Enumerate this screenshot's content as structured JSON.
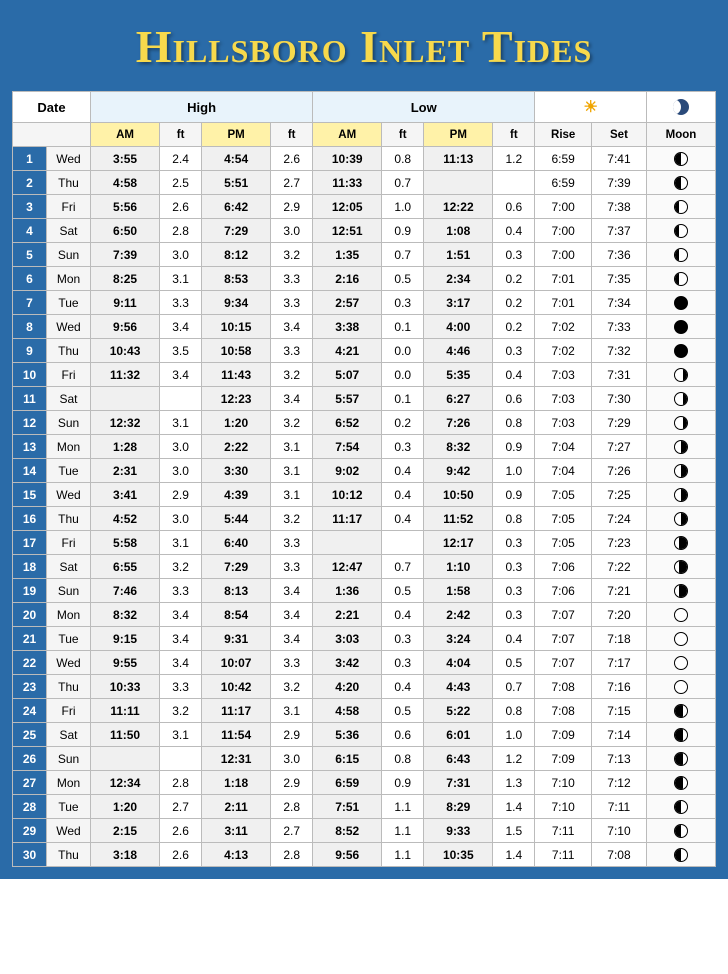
{
  "title": "Hillsboro Inlet Tides",
  "colors": {
    "page_bg": "#2a6ba8",
    "title_color": "#f7d94c",
    "highlow_bg": "#e8f3fb",
    "ampm_bg": "#fff2a8",
    "daynum_bg": "#2a6ba8",
    "border": "#bbbbbb"
  },
  "headers": {
    "date": "Date",
    "high": "High",
    "low": "Low",
    "am": "AM",
    "pm": "PM",
    "ft": "ft",
    "rise": "Rise",
    "set": "Set",
    "moon": "Moon"
  },
  "rows": [
    {
      "n": "1",
      "dow": "Wed",
      "hAM": "3:55",
      "hAMft": "2.4",
      "hPM": "4:54",
      "hPMft": "2.6",
      "lAM": "10:39",
      "lAMft": "0.8",
      "lPM": "11:13",
      "lPMft": "1.2",
      "rise": "6:59",
      "set": "7:41",
      "moon": "fq"
    },
    {
      "n": "2",
      "dow": "Thu",
      "hAM": "4:58",
      "hAMft": "2.5",
      "hPM": "5:51",
      "hPMft": "2.7",
      "lAM": "11:33",
      "lAMft": "0.7",
      "lPM": "",
      "lPMft": "",
      "rise": "6:59",
      "set": "7:39",
      "moon": "fq"
    },
    {
      "n": "3",
      "dow": "Fri",
      "hAM": "5:56",
      "hAMft": "2.6",
      "hPM": "6:42",
      "hPMft": "2.9",
      "lAM": "12:05",
      "lAMft": "1.0",
      "lPM": "12:22",
      "lPMft": "0.6",
      "rise": "7:00",
      "set": "7:38",
      "moon": "wxg"
    },
    {
      "n": "4",
      "dow": "Sat",
      "hAM": "6:50",
      "hAMft": "2.8",
      "hPM": "7:29",
      "hPMft": "3.0",
      "lAM": "12:51",
      "lAMft": "0.9",
      "lPM": "1:08",
      "lPMft": "0.4",
      "rise": "7:00",
      "set": "7:37",
      "moon": "wxg"
    },
    {
      "n": "5",
      "dow": "Sun",
      "hAM": "7:39",
      "hAMft": "3.0",
      "hPM": "8:12",
      "hPMft": "3.2",
      "lAM": "1:35",
      "lAMft": "0.7",
      "lPM": "1:51",
      "lPMft": "0.3",
      "rise": "7:00",
      "set": "7:36",
      "moon": "wxg"
    },
    {
      "n": "6",
      "dow": "Mon",
      "hAM": "8:25",
      "hAMft": "3.1",
      "hPM": "8:53",
      "hPMft": "3.3",
      "lAM": "2:16",
      "lAMft": "0.5",
      "lPM": "2:34",
      "lPMft": "0.2",
      "rise": "7:01",
      "set": "7:35",
      "moon": "wxg"
    },
    {
      "n": "7",
      "dow": "Tue",
      "hAM": "9:11",
      "hAMft": "3.3",
      "hPM": "9:34",
      "hPMft": "3.3",
      "lAM": "2:57",
      "lAMft": "0.3",
      "lPM": "3:17",
      "lPMft": "0.2",
      "rise": "7:01",
      "set": "7:34",
      "moon": "new"
    },
    {
      "n": "8",
      "dow": "Wed",
      "hAM": "9:56",
      "hAMft": "3.4",
      "hPM": "10:15",
      "hPMft": "3.4",
      "lAM": "3:38",
      "lAMft": "0.1",
      "lPM": "4:00",
      "lPMft": "0.2",
      "rise": "7:02",
      "set": "7:33",
      "moon": "new"
    },
    {
      "n": "9",
      "dow": "Thu",
      "hAM": "10:43",
      "hAMft": "3.5",
      "hPM": "10:58",
      "hPMft": "3.3",
      "lAM": "4:21",
      "lAMft": "0.0",
      "lPM": "4:46",
      "lPMft": "0.3",
      "rise": "7:02",
      "set": "7:32",
      "moon": "new"
    },
    {
      "n": "10",
      "dow": "Fri",
      "hAM": "11:32",
      "hAMft": "3.4",
      "hPM": "11:43",
      "hPMft": "3.2",
      "lAM": "5:07",
      "lAMft": "0.0",
      "lPM": "5:35",
      "lPMft": "0.4",
      "rise": "7:03",
      "set": "7:31",
      "moon": "wng"
    },
    {
      "n": "11",
      "dow": "Sat",
      "hAM": "",
      "hAMft": "",
      "hPM": "12:23",
      "hPMft": "3.4",
      "lAM": "5:57",
      "lAMft": "0.1",
      "lPM": "6:27",
      "lPMft": "0.6",
      "rise": "7:03",
      "set": "7:30",
      "moon": "wng"
    },
    {
      "n": "12",
      "dow": "Sun",
      "hAM": "12:32",
      "hAMft": "3.1",
      "hPM": "1:20",
      "hPMft": "3.2",
      "lAM": "6:52",
      "lAMft": "0.2",
      "lPM": "7:26",
      "lPMft": "0.8",
      "rise": "7:03",
      "set": "7:29",
      "moon": "wng"
    },
    {
      "n": "13",
      "dow": "Mon",
      "hAM": "1:28",
      "hAMft": "3.0",
      "hPM": "2:22",
      "hPMft": "3.1",
      "lAM": "7:54",
      "lAMft": "0.3",
      "lPM": "8:32",
      "lPMft": "0.9",
      "rise": "7:04",
      "set": "7:27",
      "moon": "lq"
    },
    {
      "n": "14",
      "dow": "Tue",
      "hAM": "2:31",
      "hAMft": "3.0",
      "hPM": "3:30",
      "hPMft": "3.1",
      "lAM": "9:02",
      "lAMft": "0.4",
      "lPM": "9:42",
      "lPMft": "1.0",
      "rise": "7:04",
      "set": "7:26",
      "moon": "lq"
    },
    {
      "n": "15",
      "dow": "Wed",
      "hAM": "3:41",
      "hAMft": "2.9",
      "hPM": "4:39",
      "hPMft": "3.1",
      "lAM": "10:12",
      "lAMft": "0.4",
      "lPM": "10:50",
      "lPMft": "0.9",
      "rise": "7:05",
      "set": "7:25",
      "moon": "lq"
    },
    {
      "n": "16",
      "dow": "Thu",
      "hAM": "4:52",
      "hAMft": "3.0",
      "hPM": "5:44",
      "hPMft": "3.2",
      "lAM": "11:17",
      "lAMft": "0.4",
      "lPM": "11:52",
      "lPMft": "0.8",
      "rise": "7:05",
      "set": "7:24",
      "moon": "lq"
    },
    {
      "n": "17",
      "dow": "Fri",
      "hAM": "5:58",
      "hAMft": "3.1",
      "hPM": "6:40",
      "hPMft": "3.3",
      "lAM": "",
      "lAMft": "",
      "lPM": "12:17",
      "lPMft": "0.3",
      "rise": "7:05",
      "set": "7:23",
      "moon": "wnc"
    },
    {
      "n": "18",
      "dow": "Sat",
      "hAM": "6:55",
      "hAMft": "3.2",
      "hPM": "7:29",
      "hPMft": "3.3",
      "lAM": "12:47",
      "lAMft": "0.7",
      "lPM": "1:10",
      "lPMft": "0.3",
      "rise": "7:06",
      "set": "7:22",
      "moon": "wnc"
    },
    {
      "n": "19",
      "dow": "Sun",
      "hAM": "7:46",
      "hAMft": "3.3",
      "hPM": "8:13",
      "hPMft": "3.4",
      "lAM": "1:36",
      "lAMft": "0.5",
      "lPM": "1:58",
      "lPMft": "0.3",
      "rise": "7:06",
      "set": "7:21",
      "moon": "wnc"
    },
    {
      "n": "20",
      "dow": "Mon",
      "hAM": "8:32",
      "hAMft": "3.4",
      "hPM": "8:54",
      "hPMft": "3.4",
      "lAM": "2:21",
      "lAMft": "0.4",
      "lPM": "2:42",
      "lPMft": "0.3",
      "rise": "7:07",
      "set": "7:20",
      "moon": "full"
    },
    {
      "n": "21",
      "dow": "Tue",
      "hAM": "9:15",
      "hAMft": "3.4",
      "hPM": "9:31",
      "hPMft": "3.4",
      "lAM": "3:03",
      "lAMft": "0.3",
      "lPM": "3:24",
      "lPMft": "0.4",
      "rise": "7:07",
      "set": "7:18",
      "moon": "full"
    },
    {
      "n": "22",
      "dow": "Wed",
      "hAM": "9:55",
      "hAMft": "3.4",
      "hPM": "10:07",
      "hPMft": "3.3",
      "lAM": "3:42",
      "lAMft": "0.3",
      "lPM": "4:04",
      "lPMft": "0.5",
      "rise": "7:07",
      "set": "7:17",
      "moon": "full"
    },
    {
      "n": "23",
      "dow": "Thu",
      "hAM": "10:33",
      "hAMft": "3.3",
      "hPM": "10:42",
      "hPMft": "3.2",
      "lAM": "4:20",
      "lAMft": "0.4",
      "lPM": "4:43",
      "lPMft": "0.7",
      "rise": "7:08",
      "set": "7:16",
      "moon": "full"
    },
    {
      "n": "24",
      "dow": "Fri",
      "hAM": "11:11",
      "hAMft": "3.2",
      "hPM": "11:17",
      "hPMft": "3.1",
      "lAM": "4:58",
      "lAMft": "0.5",
      "lPM": "5:22",
      "lPMft": "0.8",
      "rise": "7:08",
      "set": "7:15",
      "moon": "wxc"
    },
    {
      "n": "25",
      "dow": "Sat",
      "hAM": "11:50",
      "hAMft": "3.1",
      "hPM": "11:54",
      "hPMft": "2.9",
      "lAM": "5:36",
      "lAMft": "0.6",
      "lPM": "6:01",
      "lPMft": "1.0",
      "rise": "7:09",
      "set": "7:14",
      "moon": "wxc"
    },
    {
      "n": "26",
      "dow": "Sun",
      "hAM": "",
      "hAMft": "",
      "hPM": "12:31",
      "hPMft": "3.0",
      "lAM": "6:15",
      "lAMft": "0.8",
      "lPM": "6:43",
      "lPMft": "1.2",
      "rise": "7:09",
      "set": "7:13",
      "moon": "wxc"
    },
    {
      "n": "27",
      "dow": "Mon",
      "hAM": "12:34",
      "hAMft": "2.8",
      "hPM": "1:18",
      "hPMft": "2.9",
      "lAM": "6:59",
      "lAMft": "0.9",
      "lPM": "7:31",
      "lPMft": "1.3",
      "rise": "7:10",
      "set": "7:12",
      "moon": "wxc"
    },
    {
      "n": "28",
      "dow": "Tue",
      "hAM": "1:20",
      "hAMft": "2.7",
      "hPM": "2:11",
      "hPMft": "2.8",
      "lAM": "7:51",
      "lAMft": "1.1",
      "lPM": "8:29",
      "lPMft": "1.4",
      "rise": "7:10",
      "set": "7:11",
      "moon": "fq"
    },
    {
      "n": "29",
      "dow": "Wed",
      "hAM": "2:15",
      "hAMft": "2.6",
      "hPM": "3:11",
      "hPMft": "2.7",
      "lAM": "8:52",
      "lAMft": "1.1",
      "lPM": "9:33",
      "lPMft": "1.5",
      "rise": "7:11",
      "set": "7:10",
      "moon": "fq"
    },
    {
      "n": "30",
      "dow": "Thu",
      "hAM": "3:18",
      "hAMft": "2.6",
      "hPM": "4:13",
      "hPMft": "2.8",
      "lAM": "9:56",
      "lAMft": "1.1",
      "lPM": "10:35",
      "lPMft": "1.4",
      "rise": "7:11",
      "set": "7:08",
      "moon": "fq"
    }
  ]
}
